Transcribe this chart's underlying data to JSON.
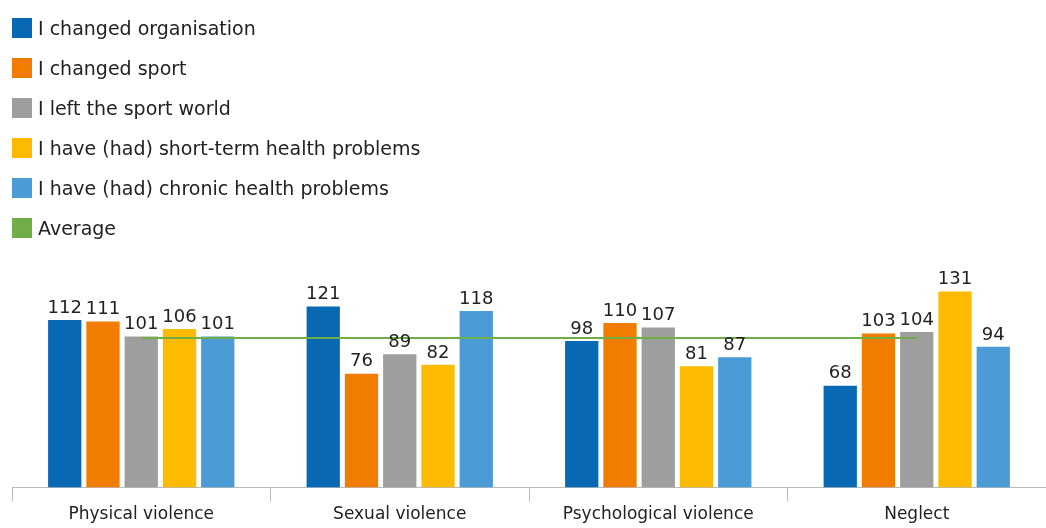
{
  "chart_data": {
    "type": "bar",
    "categories": [
      "Physical violence",
      "Sexual violence",
      "Psychological violence",
      "Neglect"
    ],
    "series": [
      {
        "name": "I changed organisation",
        "color": "#0868b4",
        "values": [
          112,
          121,
          98,
          68
        ],
        "value_labels": [
          "112",
          "121",
          "98",
          "68"
        ]
      },
      {
        "name": "I changed sport",
        "color": "#f07d00",
        "values": [
          111,
          76,
          110,
          103
        ],
        "value_labels": [
          "111",
          "76",
          "110",
          "103"
        ]
      },
      {
        "name": "I left the sport world",
        "color": "#9e9e9e",
        "values": [
          101,
          89,
          107,
          104
        ],
        "value_labels": [
          "101",
          "89",
          "107",
          "104"
        ]
      },
      {
        "name": "I have (had) short-term health problems",
        "color": "#fcbb00",
        "values": [
          106,
          82,
          81,
          131
        ],
        "value_labels": [
          "106",
          "82",
          "81",
          "131"
        ]
      },
      {
        "name": "I have (had) chronic health problems",
        "color": "#4a9bd6",
        "values": [
          101,
          118,
          87,
          94
        ],
        "value_labels": [
          "101",
          "118",
          "87",
          "94"
        ]
      },
      {
        "name": "Average",
        "type": "line",
        "color": "#70ad47",
        "values": [
          100,
          100,
          100,
          100
        ]
      }
    ],
    "legend": "top left",
    "tick_labels": "x",
    "grid": false
  }
}
